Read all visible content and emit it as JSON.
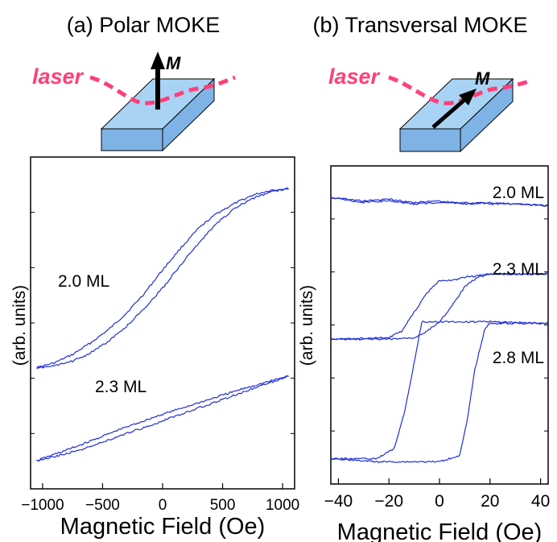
{
  "figure": {
    "colors": {
      "trace": "#1f2fd6",
      "laser": "#ff3f78",
      "slab_top": "#a9d3f5",
      "slab_side": "#7fb3e6",
      "axis": "#000000"
    },
    "icons": [
      "sample-slab-icon",
      "magnetization-arrow-icon",
      "laser-path-icon"
    ]
  },
  "panels": [
    {
      "title": "(a) Polar MOKE",
      "diagram": {
        "laser_label": "laser",
        "m_label": "M",
        "m_direction": "up"
      }
    },
    {
      "title": "(b) Transversal MOKE",
      "diagram": {
        "laser_label": "laser",
        "m_label": "M",
        "m_direction": "in-plane"
      }
    }
  ],
  "chart_data": [
    {
      "type": "line",
      "xlabel": "Magnetic Field (Oe)",
      "ylabel": "(arb. units)",
      "xlim": [
        -1100,
        1100
      ],
      "xticks": [
        -1000,
        -500,
        0,
        500,
        1000
      ],
      "xtick_labels": [
        "−1000",
        "−500",
        "0",
        "500",
        "1000"
      ],
      "ylim": [
        0,
        1
      ],
      "y_tick_labels_shown": false,
      "grid": false,
      "series": [
        {
          "name": "2.0 ML",
          "upper_branch": {
            "x": [
              -1050,
              -900,
              -750,
              -600,
              -450,
              -300,
              -150,
              0,
              150,
              300,
              450,
              600,
              750,
              900,
              1050
            ],
            "y": [
              0.365,
              0.38,
              0.405,
              0.44,
              0.48,
              0.53,
              0.59,
              0.66,
              0.725,
              0.785,
              0.83,
              0.86,
              0.885,
              0.9,
              0.905
            ]
          },
          "lower_branch": {
            "x": [
              -1050,
              -900,
              -750,
              -600,
              -450,
              -300,
              -150,
              0,
              150,
              300,
              450,
              600,
              750,
              900,
              1050
            ],
            "y": [
              0.365,
              0.37,
              0.385,
              0.41,
              0.445,
              0.49,
              0.545,
              0.605,
              0.675,
              0.74,
              0.8,
              0.845,
              0.875,
              0.895,
              0.905
            ]
          }
        },
        {
          "name": "2.3 ML",
          "upper_branch": {
            "x": [
              -1050,
              -700,
              -350,
              0,
              350,
              700,
              1050
            ],
            "y": [
              0.085,
              0.13,
              0.18,
              0.225,
              0.265,
              0.305,
              0.34
            ]
          },
          "lower_branch": {
            "x": [
              -1050,
              -700,
              -350,
              0,
              350,
              700,
              1050
            ],
            "y": [
              0.085,
              0.115,
              0.16,
              0.205,
              0.25,
              0.295,
              0.34
            ]
          }
        }
      ]
    },
    {
      "type": "line",
      "xlabel": "Magnetic Field (Oe)",
      "ylabel": "(arb. units)",
      "xlim": [
        -43,
        43
      ],
      "xticks": [
        -40,
        -20,
        0,
        20,
        40
      ],
      "xtick_labels": [
        "−40",
        "−20",
        "0",
        "20",
        "40"
      ],
      "ylim": [
        0,
        1
      ],
      "y_tick_labels_shown": false,
      "grid": false,
      "series": [
        {
          "name": "2.0 ML",
          "upper_branch": {
            "x": [
              -43,
              -30,
              -20,
              -10,
              0,
              10,
              20,
              30,
              43
            ],
            "y": [
              0.9,
              0.89,
              0.895,
              0.885,
              0.89,
              0.88,
              0.885,
              0.88,
              0.875
            ]
          },
          "lower_branch": {
            "x": [
              -43,
              -30,
              -20,
              -10,
              0,
              10,
              20,
              30,
              43
            ],
            "y": [
              0.9,
              0.885,
              0.89,
              0.88,
              0.885,
              0.885,
              0.88,
              0.88,
              0.875
            ]
          }
        },
        {
          "name": "2.3 ML",
          "upper_branch": {
            "x": [
              -43,
              -20,
              -15,
              -10,
              -5,
              0,
              5,
              10,
              20,
              43
            ],
            "y": [
              0.455,
              0.46,
              0.48,
              0.54,
              0.6,
              0.64,
              0.64,
              0.65,
              0.66,
              0.66
            ]
          },
          "lower_branch": {
            "x": [
              -43,
              -20,
              -10,
              -5,
              0,
              5,
              10,
              15,
              20,
              43
            ],
            "y": [
              0.455,
              0.455,
              0.46,
              0.48,
              0.51,
              0.56,
              0.62,
              0.65,
              0.66,
              0.66
            ]
          }
        },
        {
          "name": "2.8 ML",
          "upper_branch": {
            "x": [
              -43,
              -25,
              -18,
              -14,
              -10,
              -7,
              0,
              20,
              43
            ],
            "y": [
              0.08,
              0.08,
              0.11,
              0.22,
              0.38,
              0.51,
              0.51,
              0.51,
              0.505
            ]
          },
          "lower_branch": {
            "x": [
              -43,
              -25,
              0,
              8,
              11,
              14,
              18,
              20,
              43
            ],
            "y": [
              0.08,
              0.07,
              0.07,
              0.09,
              0.2,
              0.36,
              0.49,
              0.505,
              0.505
            ]
          }
        }
      ]
    }
  ]
}
